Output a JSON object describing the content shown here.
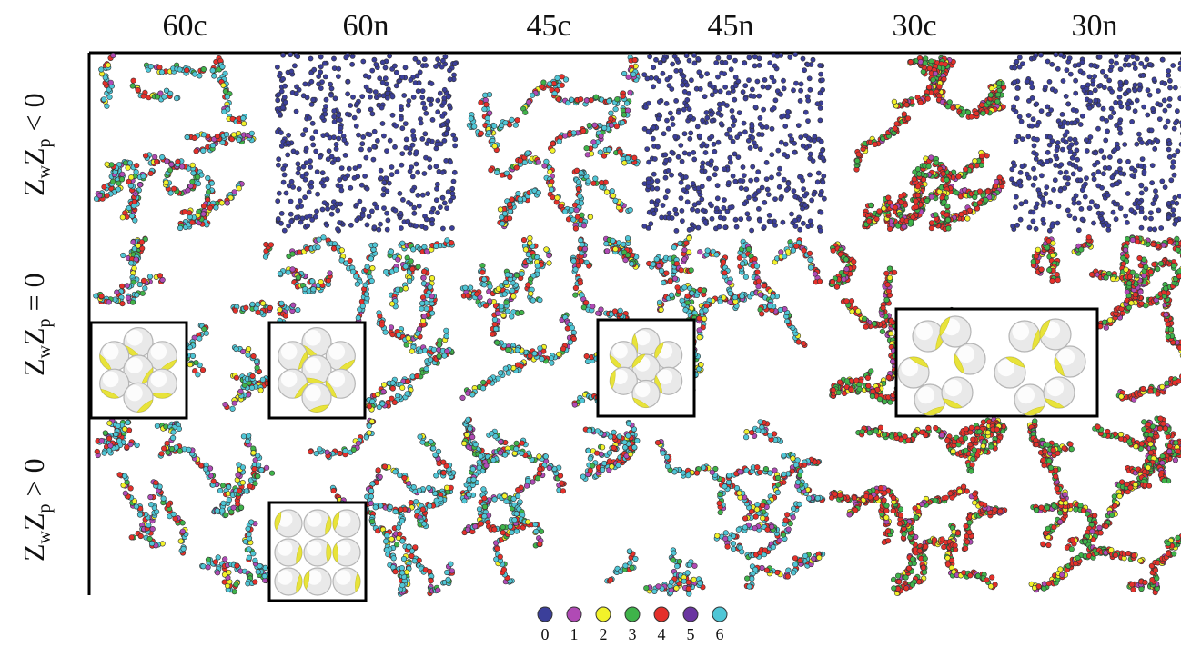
{
  "columns": [
    {
      "label": "60c",
      "pattern": "chains-cyan"
    },
    {
      "label": "60n",
      "pattern": "dispersed-blue"
    },
    {
      "label": "45c",
      "pattern": "chains-cyan"
    },
    {
      "label": "45n",
      "pattern": "dispersed-blue"
    },
    {
      "label": "30c",
      "pattern": "clusters-red"
    },
    {
      "label": "30n",
      "pattern": "dispersed-blue"
    }
  ],
  "rows": [
    {
      "label": {
        "z1": "Z",
        "s1": "w",
        "z2": "Z",
        "s2": "p",
        "rel": "< 0"
      }
    },
    {
      "label": {
        "z1": "Z",
        "s1": "w",
        "z2": "Z",
        "s2": "p",
        "rel": "= 0"
      }
    },
    {
      "label": {
        "z1": "Z",
        "s1": "w",
        "z2": "Z",
        "s2": "p",
        "rel": "> 0"
      }
    }
  ],
  "legend": {
    "items": [
      {
        "value": "0",
        "color": "#3b3f9a"
      },
      {
        "value": "1",
        "color": "#b04ab5"
      },
      {
        "value": "2",
        "color": "#f2f22a"
      },
      {
        "value": "3",
        "color": "#3fb34a"
      },
      {
        "value": "4",
        "color": "#e4302a"
      },
      {
        "value": "5",
        "color": "#6a35a0"
      },
      {
        "value": "6",
        "color": "#4fc6d6"
      }
    ]
  },
  "insets": [
    {
      "name": "inset-hexagonal-cluster-60c",
      "arrangement": "hex-7"
    },
    {
      "name": "inset-hexagonal-cluster-60n",
      "arrangement": "hex-7"
    },
    {
      "name": "inset-hexagonal-cluster-45",
      "arrangement": "hex-7-tight"
    },
    {
      "name": "inset-ring-clusters-30",
      "arrangement": "two-rings"
    },
    {
      "name": "inset-square-cluster-60n",
      "arrangement": "square-9"
    }
  ]
}
